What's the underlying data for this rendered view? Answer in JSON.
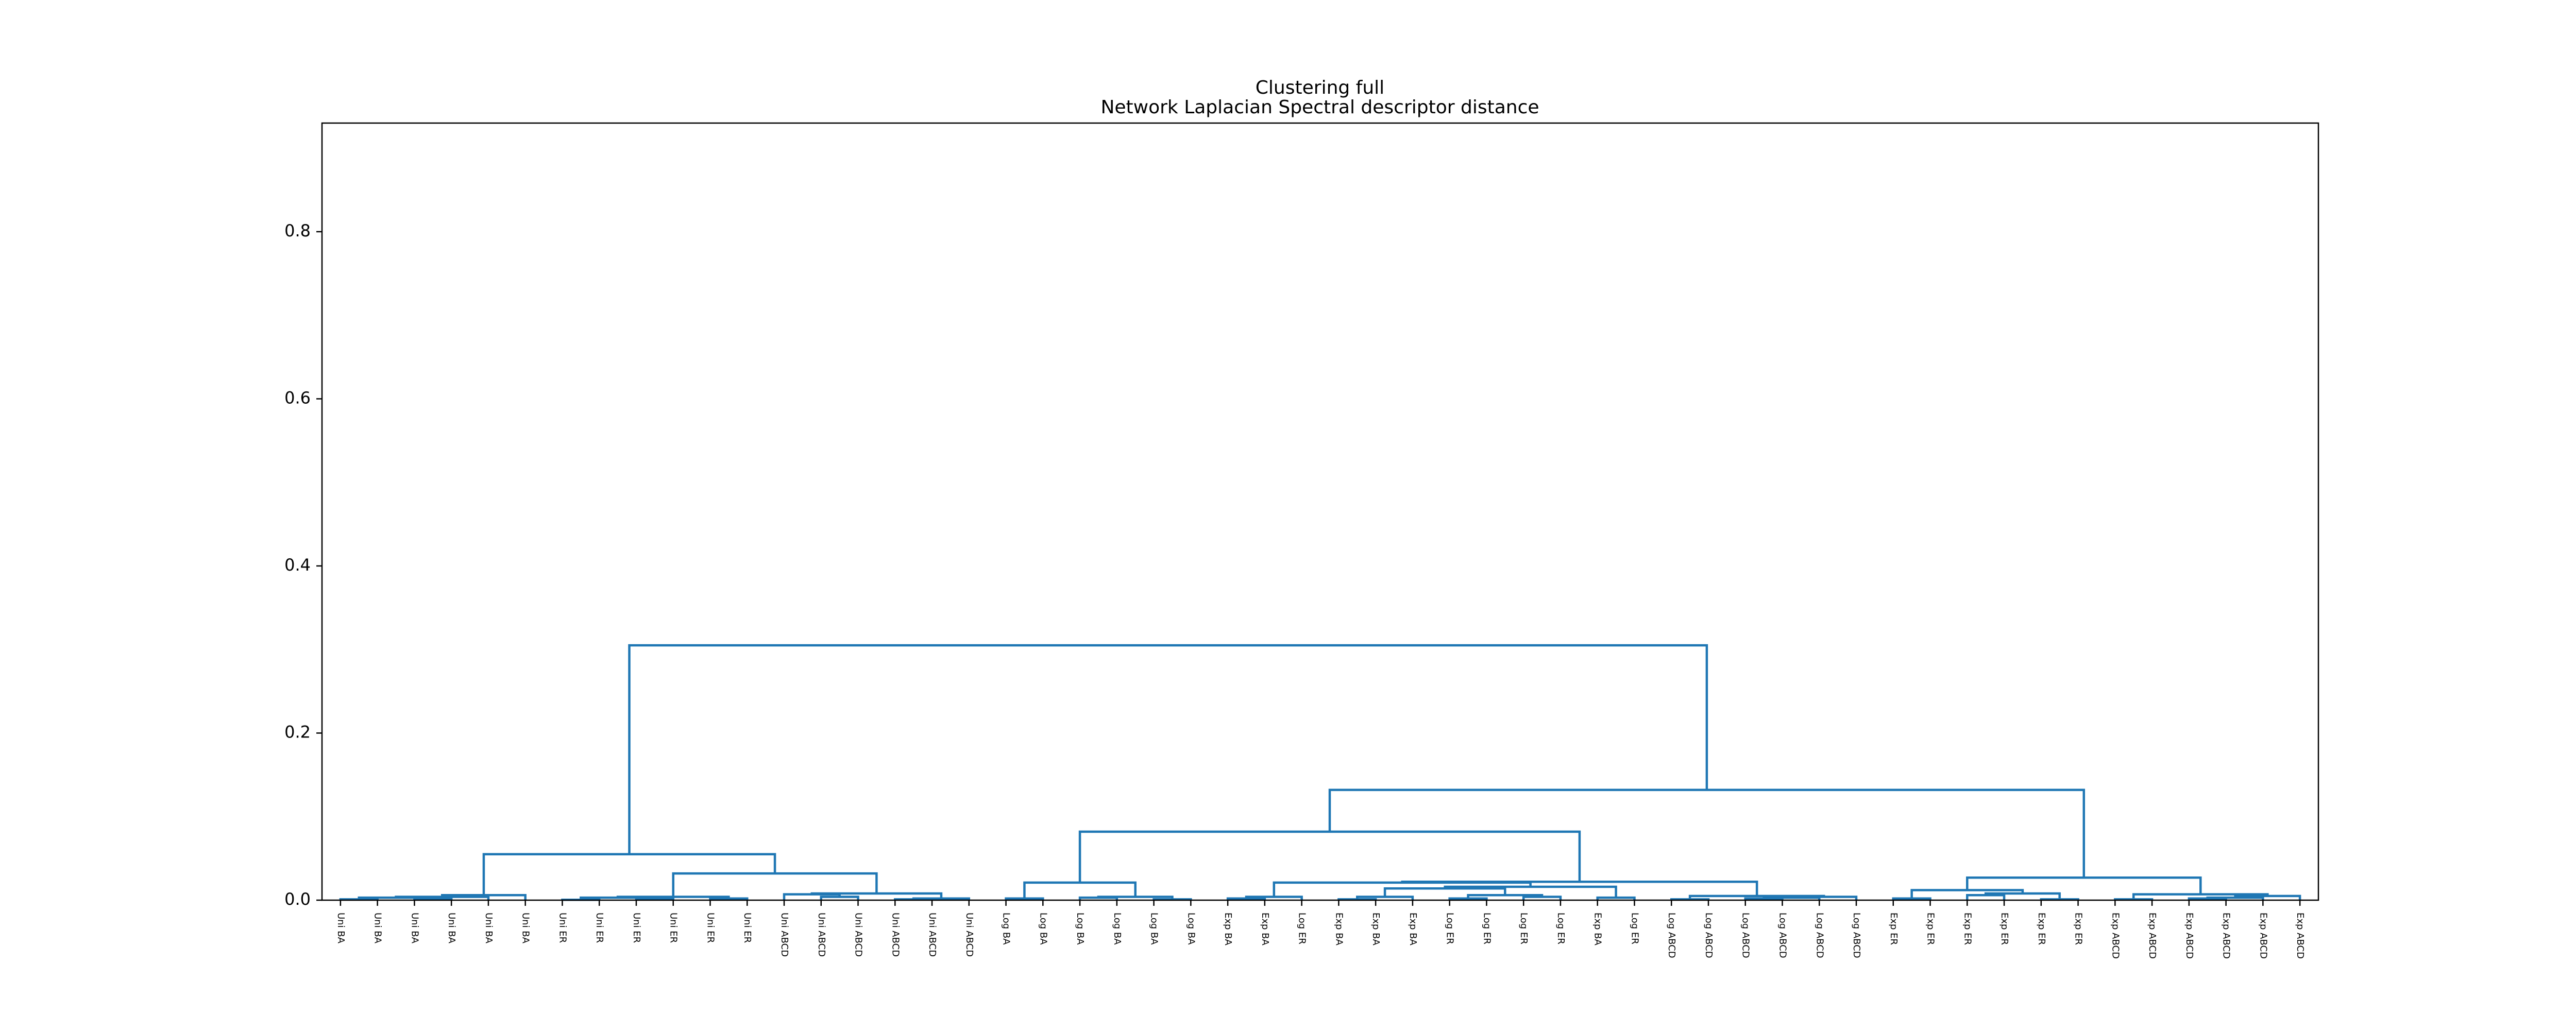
{
  "chart_data": {
    "type": "dendrogram",
    "title": "Clustering full",
    "subtitle": "Network Laplacian Spectral descriptor distance",
    "categories": [
      "Uni BA",
      "Uni BA",
      "Uni BA",
      "Uni BA",
      "Uni BA",
      "Uni BA",
      "Uni ER",
      "Uni ER",
      "Uni ER",
      "Uni ER",
      "Uni ER",
      "Uni ER",
      "Uni ABCD",
      "Uni ABCD",
      "Uni ABCD",
      "Uni ABCD",
      "Uni ABCD",
      "Uni ABCD",
      "Log BA",
      "Log BA",
      "Log BA",
      "Log BA",
      "Log BA",
      "Log BA",
      "Exp BA",
      "Exp BA",
      "Log ER",
      "Exp BA",
      "Exp BA",
      "Exp BA",
      "Log ER",
      "Log ER",
      "Log ER",
      "Log ER",
      "Exp BA",
      "Log ER",
      "Log ABCD",
      "Log ABCD",
      "Log ABCD",
      "Log ABCD",
      "Log ABCD",
      "Log ABCD",
      "Exp ER",
      "Exp ER",
      "Exp ER",
      "Exp ER",
      "Exp ER",
      "Exp ER",
      "Exp ABCD",
      "Exp ABCD",
      "Exp ABCD",
      "Exp ABCD",
      "Exp ABCD",
      "Exp ABCD"
    ],
    "label_colors": [
      "#008000",
      "#008000",
      "#008000",
      "#008000",
      "#008000",
      "#008000",
      "#228b22",
      "#228b22",
      "#228b22",
      "#228b22",
      "#228b22",
      "#228b22",
      "#98fb98",
      "#98fb98",
      "#98fb98",
      "#98fb98",
      "#98fb98",
      "#98fb98",
      "#0000ff",
      "#0000ff",
      "#0000ff",
      "#0000ff",
      "#0000ff",
      "#0000ff",
      "#ff0000",
      "#ff0000",
      "#00008b",
      "#ff0000",
      "#ff0000",
      "#ff0000",
      "#00008b",
      "#00008b",
      "#00008b",
      "#00008b",
      "#ff0000",
      "#00008b",
      "#add8e6",
      "#add8e6",
      "#add8e6",
      "#add8e6",
      "#add8e6",
      "#add8e6",
      "#8b0000",
      "#8b0000",
      "#8b0000",
      "#8b0000",
      "#8b0000",
      "#8b0000",
      "#f08080",
      "#f08080",
      "#f08080",
      "#f08080",
      "#f08080",
      "#f08080"
    ],
    "link_color": "#1f77b4",
    "merges": [
      [
        0,
        1,
        0.001
      ],
      [
        2,
        3,
        0.002
      ],
      [
        54,
        55,
        0.003
      ],
      [
        56,
        4,
        0.004
      ],
      [
        57,
        5,
        0.006
      ],
      [
        6,
        7,
        0.0005
      ],
      [
        8,
        9,
        0.002
      ],
      [
        59,
        60,
        0.003
      ],
      [
        10,
        11,
        0.002
      ],
      [
        61,
        62,
        0.004
      ],
      [
        13,
        14,
        0.004
      ],
      [
        12,
        64,
        0.007
      ],
      [
        15,
        16,
        0.001
      ],
      [
        66,
        17,
        0.002
      ],
      [
        65,
        67,
        0.008
      ],
      [
        63,
        68,
        0.032
      ],
      [
        58,
        69,
        0.055
      ],
      [
        18,
        19,
        0.002
      ],
      [
        20,
        21,
        0.003
      ],
      [
        22,
        23,
        0.001
      ],
      [
        72,
        73,
        0.004
      ],
      [
        71,
        74,
        0.021
      ],
      [
        24,
        25,
        0.002
      ],
      [
        76,
        26,
        0.004
      ],
      [
        27,
        28,
        0.001
      ],
      [
        78,
        29,
        0.004
      ],
      [
        30,
        31,
        0.002
      ],
      [
        32,
        33,
        0.004
      ],
      [
        80,
        81,
        0.006
      ],
      [
        79,
        82,
        0.014
      ],
      [
        34,
        35,
        0.003
      ],
      [
        83,
        84,
        0.016
      ],
      [
        77,
        85,
        0.021
      ],
      [
        36,
        37,
        0.001
      ],
      [
        38,
        39,
        0.002
      ],
      [
        88,
        40,
        0.003
      ],
      [
        89,
        41,
        0.004
      ],
      [
        87,
        90,
        0.005
      ],
      [
        86,
        91,
        0.022
      ],
      [
        75,
        92,
        0.082
      ],
      [
        42,
        43,
        0.002
      ],
      [
        44,
        45,
        0.006
      ],
      [
        46,
        47,
        0.001
      ],
      [
        95,
        96,
        0.008
      ],
      [
        94,
        97,
        0.012
      ],
      [
        48,
        49,
        0.001
      ],
      [
        50,
        51,
        0.002
      ],
      [
        100,
        52,
        0.003
      ],
      [
        101,
        53,
        0.005
      ],
      [
        99,
        102,
        0.007
      ],
      [
        98,
        103,
        0.027
      ],
      [
        93,
        104,
        0.132
      ],
      [
        70,
        105,
        0.305
      ]
    ],
    "ylim": [
      0,
      0.93
    ],
    "yticks": [
      {
        "value": 0,
        "label": "0.0"
      },
      {
        "value": 0.2,
        "label": "0.2"
      },
      {
        "value": 0.4,
        "label": "0.4"
      },
      {
        "value": 0.6,
        "label": "0.6"
      },
      {
        "value": 0.8,
        "label": "0.8"
      }
    ]
  }
}
